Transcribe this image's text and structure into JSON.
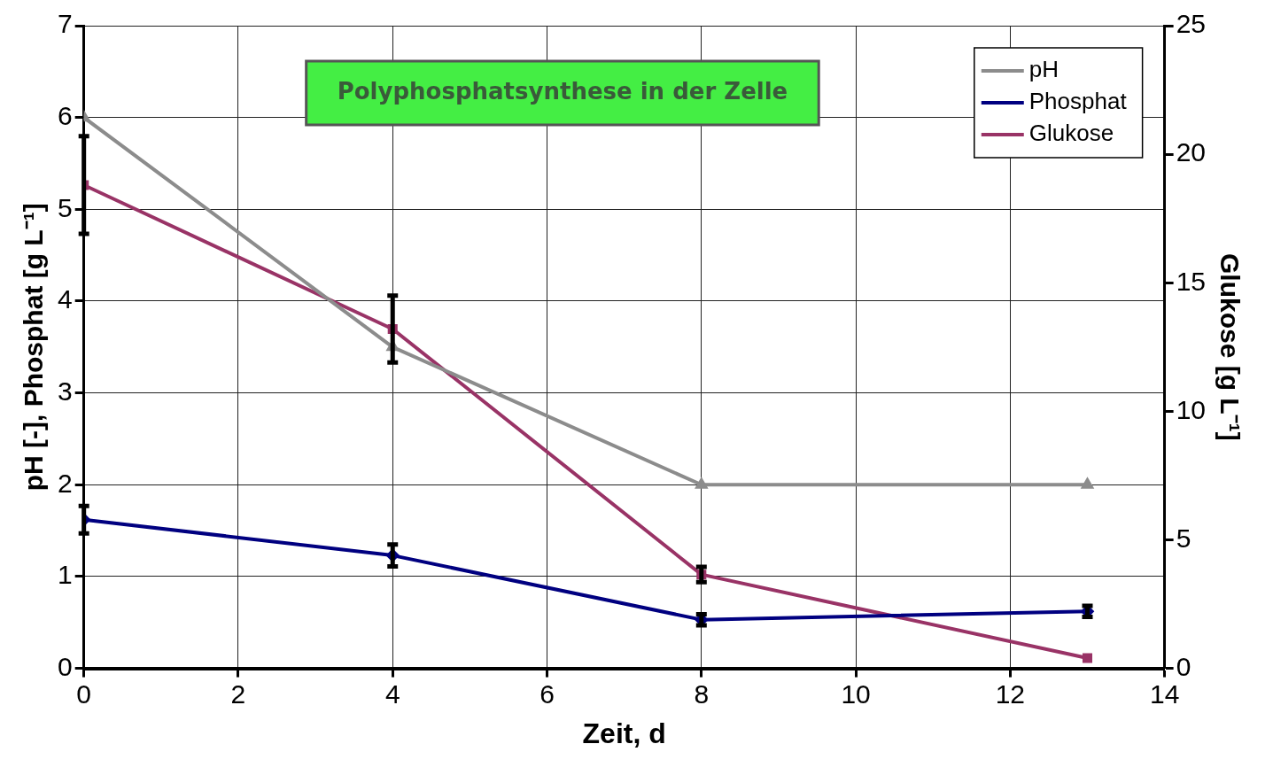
{
  "chart_data": {
    "type": "line",
    "title": "Polyphosphatsynthese in der Zelle",
    "xlabel": "Zeit, d",
    "ylabel": "pH [-], Phosphat [g L⁻¹]",
    "y2label": "Glukose [g L⁻¹]",
    "x": [
      0,
      4,
      8,
      13
    ],
    "series": [
      {
        "name": "pH",
        "color": "#8c8c8c",
        "values": [
          6,
          3.5,
          2,
          2
        ],
        "marker": "triangle"
      },
      {
        "name": "Phosphat",
        "color": "#000080",
        "values": [
          1.62,
          1.23,
          0.53,
          0.62
        ],
        "errors": [
          0.15,
          0.12,
          0.06,
          0.06
        ],
        "marker": "diamond"
      },
      {
        "name": "Glukose",
        "color": "#993366",
        "values": [
          18.8,
          13.2,
          3.65,
          0.4
        ],
        "errors": [
          1.9,
          1.3,
          0.3,
          null
        ],
        "marker": "square",
        "axis": "y2"
      }
    ],
    "xlim": [
      0,
      14
    ],
    "xticks": [
      0,
      2,
      4,
      6,
      8,
      10,
      12,
      14
    ],
    "ylim": [
      0,
      7
    ],
    "yticks": [
      0,
      1,
      2,
      3,
      4,
      5,
      6,
      7
    ],
    "y2lim": [
      0,
      25
    ],
    "y2ticks": [
      0,
      5,
      10,
      15,
      20,
      25
    ],
    "grid": true,
    "legend": "top right",
    "line_style": "solid"
  }
}
